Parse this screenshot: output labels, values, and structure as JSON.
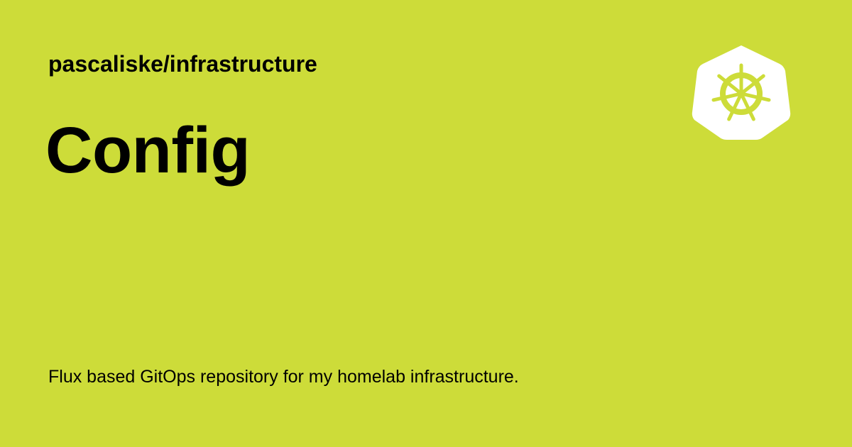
{
  "card": {
    "background_color": "#cddc39",
    "text_color": "#000000",
    "repo_name": "pascaliske/infrastructure",
    "title": "Config",
    "description": "Flux based GitOps repository for my homelab infrastructure.",
    "logo_icon": "kubernetes-helm-wheel-icon",
    "logo_color": "#ffffff"
  }
}
